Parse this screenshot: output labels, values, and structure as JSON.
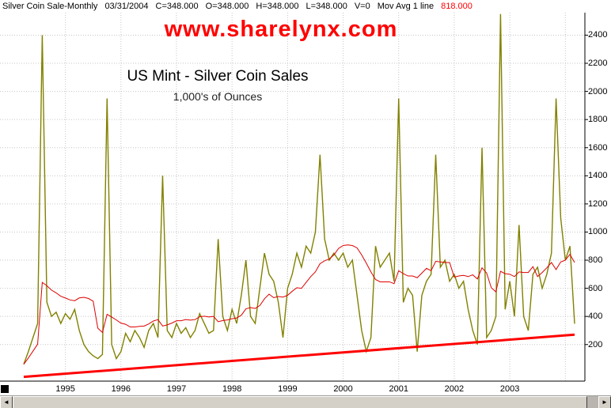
{
  "header": {
    "series_label": "Silver Coin Sale-Monthly",
    "date": "03/31/2004",
    "close": "C=348.000",
    "open": "O=348.000",
    "high": "H=348.000",
    "low": "L=348.000",
    "volume": "V=0",
    "ma_label": "Mov Avg 1 line",
    "ma_value": "818.000",
    "ma_value_color": "#ff0000"
  },
  "chart_data": {
    "type": "line",
    "title": "US Mint - Silver Coin Sales",
    "subtitle": "1,000's of Ounces",
    "watermark": "www.sharelynx.com",
    "watermark_color": "#ff0000",
    "frequency": "monthly",
    "start_month": "1994-04",
    "end_month": "2004-03",
    "ylim": [
      -60,
      2560
    ],
    "y_ticks": [
      200,
      400,
      600,
      800,
      1000,
      1200,
      1400,
      1600,
      1800,
      2000,
      2200,
      2400
    ],
    "x_tick_years": [
      1995,
      1996,
      1997,
      1998,
      1999,
      2000,
      2001,
      2002,
      2003
    ],
    "grid": true,
    "grid_color": "#c6c6c6",
    "legend": "none",
    "series": [
      {
        "name": "US Mint Silver Coin Sales (1,000s oz)",
        "color": "#818100",
        "values": [
          60,
          150,
          250,
          350,
          2400,
          500,
          400,
          430,
          350,
          420,
          380,
          450,
          300,
          200,
          150,
          120,
          100,
          130,
          1950,
          200,
          100,
          150,
          280,
          220,
          300,
          250,
          180,
          300,
          350,
          250,
          1400,
          300,
          250,
          350,
          280,
          320,
          250,
          300,
          420,
          350,
          280,
          300,
          950,
          400,
          300,
          450,
          350,
          550,
          800,
          400,
          350,
          600,
          850,
          700,
          650,
          500,
          250,
          600,
          700,
          850,
          750,
          900,
          850,
          1000,
          1550,
          950,
          800,
          850,
          800,
          850,
          750,
          800,
          550,
          300,
          150,
          250,
          900,
          750,
          800,
          850,
          650,
          1950,
          500,
          600,
          550,
          150,
          550,
          650,
          700,
          1550,
          750,
          800,
          650,
          700,
          600,
          650,
          450,
          300,
          200,
          1600,
          250,
          300,
          400,
          2550,
          450,
          650,
          400,
          1050,
          400,
          300,
          700,
          750,
          600,
          700,
          850,
          1950,
          1100,
          800,
          900,
          348
        ]
      }
    ],
    "moving_average": {
      "name": "Mov Avg 1 line",
      "period": 12,
      "color": "#dd0000",
      "last_value": 818
    },
    "trendline": {
      "color": "#ff0000",
      "width": 3,
      "start_value": -30,
      "end_value": 270
    }
  },
  "scrollbar": {
    "left_arrow": "◄",
    "right_arrow": "►"
  }
}
